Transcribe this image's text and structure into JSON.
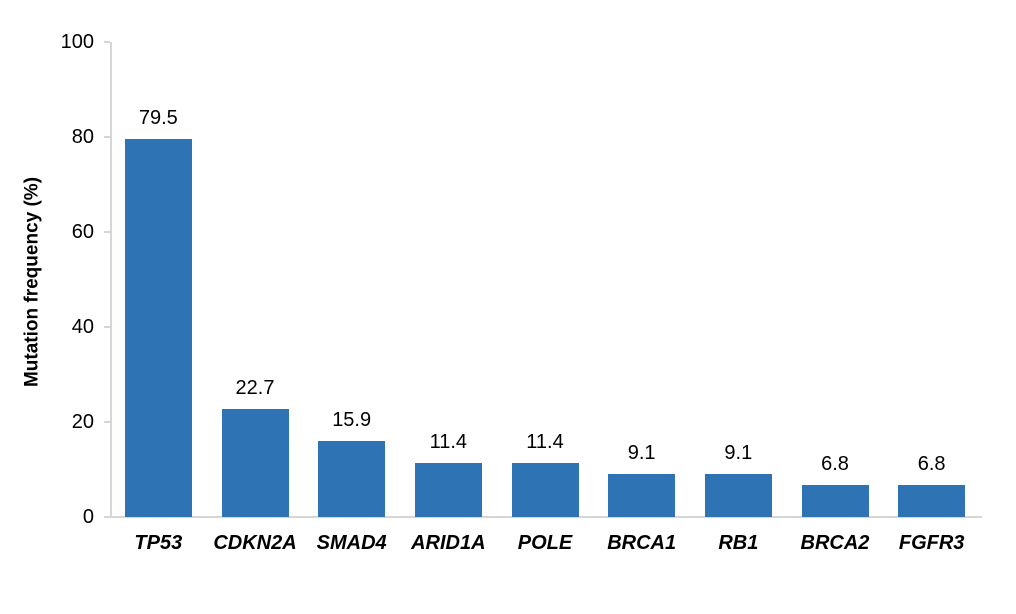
{
  "chart_data": {
    "type": "bar",
    "title": "",
    "categories": [
      "TP53",
      "CDKN2A",
      "SMAD4",
      "ARID1A",
      "POLE",
      "BRCA1",
      "RB1",
      "BRCA2",
      "FGFR3"
    ],
    "values": [
      79.5,
      22.7,
      15.9,
      11.4,
      11.4,
      9.1,
      9.1,
      6.8,
      6.8
    ],
    "value_labels": [
      "79.5",
      "22.7",
      "15.9",
      "11.4",
      "11.4",
      "9.1",
      "9.1",
      "6.8",
      "6.8"
    ],
    "xlabel": "",
    "ylabel": "Mutation frequency (%)",
    "ylim": [
      0,
      100
    ],
    "yticks": [
      0,
      20,
      40,
      60,
      80,
      100
    ],
    "ytick_labels": [
      "0",
      "20",
      "40",
      "60",
      "80",
      "100"
    ],
    "grid": false,
    "legend": false,
    "bar_color": "#2E74B5",
    "axis_color": "#D6D6D6",
    "text_color": "#000000",
    "background_color": "#FFFFFF"
  }
}
